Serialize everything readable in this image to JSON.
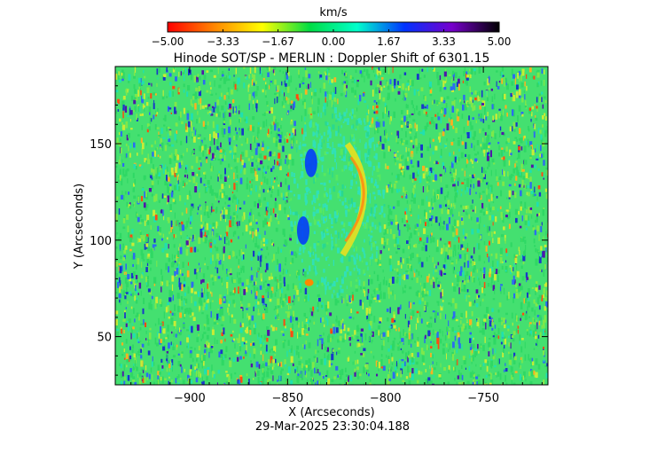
{
  "chart_data": {
    "type": "heatmap",
    "title": "Hinode SOT/SP - MERLIN : Doppler Shift of 6301.15",
    "xlabel": "X (Arcseconds)",
    "ylabel": "Y (Arcseconds)",
    "xlim": [
      -938,
      -717
    ],
    "ylim": [
      25,
      190
    ],
    "x_ticks": [
      -900,
      -850,
      -800,
      -750
    ],
    "x_tick_labels": [
      "−900",
      "−850",
      "−800",
      "−750"
    ],
    "y_ticks": [
      50,
      100,
      150
    ],
    "y_tick_labels": [
      "50",
      "100",
      "150"
    ],
    "colorbar": {
      "label": "km/s",
      "range": [
        -5.0,
        5.0
      ],
      "ticks": [
        -5.0,
        -3.33,
        -1.67,
        0.0,
        1.67,
        3.33,
        5.0
      ],
      "tick_labels": [
        "−5.00",
        "−3.33",
        "−1.67",
        "0.00",
        "1.67",
        "3.33",
        "5.00"
      ],
      "colors": [
        "#ff0000",
        "#ff8800",
        "#ffff00",
        "#00dd44",
        "#00ffcc",
        "#0033ff",
        "#7700cc",
        "#000000"
      ]
    },
    "features": [
      {
        "kind": "redshift-arc-edge",
        "x": -815,
        "y": 120,
        "value": -2.5
      },
      {
        "kind": "blueshift-patch",
        "x": -838,
        "y": 140,
        "value": 2.5
      },
      {
        "kind": "blueshift-patch",
        "x": -842,
        "y": 105,
        "value": 2.0
      },
      {
        "kind": "redshift-spot",
        "x": -839,
        "y": 78,
        "value": -4.0
      }
    ]
  },
  "timestamp": "29-Mar-2025 23:30:04.188"
}
